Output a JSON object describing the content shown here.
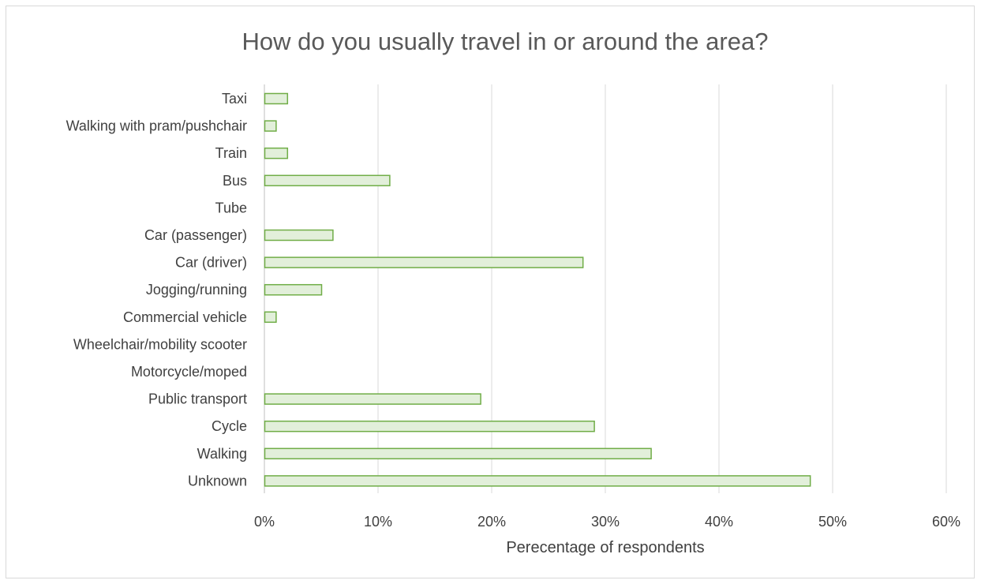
{
  "chart_data": {
    "type": "bar",
    "orientation": "horizontal",
    "title": "How do you usually travel in or around the area?",
    "xlabel": "Perecentage of respondents",
    "ylabel": "",
    "xlim": [
      0,
      0.6
    ],
    "x_ticks": [
      {
        "value": 0,
        "label": "0%"
      },
      {
        "value": 0.1,
        "label": "10%"
      },
      {
        "value": 0.2,
        "label": "20%"
      },
      {
        "value": 0.3,
        "label": "30%"
      },
      {
        "value": 0.4,
        "label": "40%"
      },
      {
        "value": 0.5,
        "label": "50%"
      },
      {
        "value": 0.6,
        "label": "60%"
      }
    ],
    "grid": "vertical",
    "legend": "none",
    "bar_fill": "#e2efda",
    "bar_stroke": "#70ad47",
    "categories": [
      "Taxi",
      "Walking with pram/pushchair",
      "Train",
      "Bus",
      "Tube",
      "Car (passenger)",
      "Car (driver)",
      "Jogging/running",
      "Commercial vehicle",
      "Wheelchair/mobility scooter",
      "Motorcycle/moped",
      "Public transport",
      "Cycle",
      "Walking",
      "Unknown"
    ],
    "values": [
      0.02,
      0.01,
      0.02,
      0.11,
      0,
      0.06,
      0.28,
      0.05,
      0.01,
      0,
      0,
      0.19,
      0.29,
      0.34,
      0.48
    ]
  }
}
